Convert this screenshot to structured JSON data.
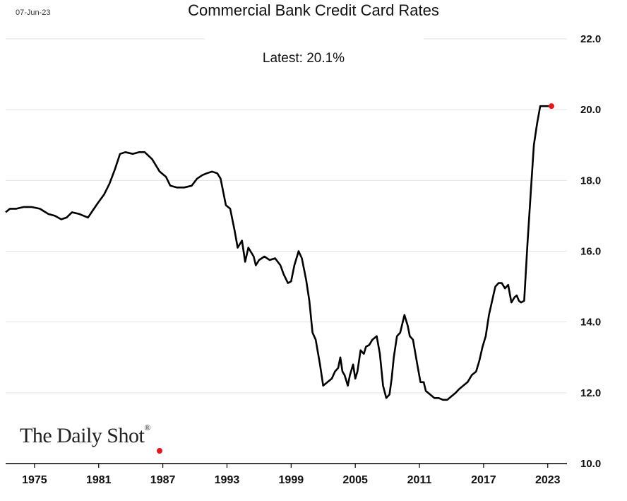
{
  "header": {
    "date": "07-Jun-23",
    "title": "Commercial Bank Credit Card Rates",
    "subtitle": "Latest:  20.1%"
  },
  "branding": {
    "logo_text": "The Daily Shot",
    "logo_mark": "®"
  },
  "colors": {
    "line": "#000000",
    "highlight": "#e2191c",
    "grid": "#e2e2e2"
  },
  "chart_data": {
    "type": "line",
    "title": "Commercial Bank Credit Card Rates",
    "subtitle": "Latest:  20.1%",
    "xlabel": "",
    "ylabel": "",
    "xlim": [
      1972.3,
      2024.8
    ],
    "ylim": [
      10.0,
      22.0
    ],
    "y_ticks": [
      "10.0",
      "12.0",
      "14.0",
      "16.0",
      "18.0",
      "20.0",
      "22.0"
    ],
    "x_ticks": [
      "1975",
      "1981",
      "1987",
      "1993",
      "1999",
      "2005",
      "2011",
      "2017",
      "2023"
    ],
    "grid": "horizontal",
    "y_axis_position": "right",
    "latest_point": {
      "x": 2023.35,
      "y": 20.1
    },
    "series": [
      {
        "x": [
          1972.3,
          1972.7,
          1973.3,
          1974.0,
          1974.7,
          1975.5,
          1976.3,
          1976.9,
          1977.5,
          1978.0,
          1978.5,
          1979.2,
          1980.0,
          1980.9,
          1981.5,
          1982.0,
          1982.5,
          1983.0,
          1983.5,
          1984.2,
          1984.8,
          1985.3,
          1986.0,
          1986.7,
          1987.3,
          1987.7,
          1988.3,
          1989.0,
          1989.7,
          1990.2,
          1990.7,
          1991.1,
          1991.6,
          1992.1,
          1992.4,
          1992.9,
          1993.3,
          1993.7,
          1994.0,
          1994.4,
          1994.7,
          1995.0,
          1995.5,
          1995.7,
          1996.0,
          1996.5,
          1997.0,
          1997.5,
          1998.0,
          1998.3,
          1998.7,
          1999.0,
          1999.3,
          1999.7,
          2000.0,
          2000.4,
          2000.7,
          2001.0,
          2001.3,
          2001.7,
          2002.0,
          2002.4,
          2002.8,
          2003.1,
          2003.4,
          2003.6,
          2003.8,
          2004.0,
          2004.3,
          2004.5,
          2004.8,
          2005.0,
          2005.2,
          2005.5,
          2005.8,
          2006.0,
          2006.3,
          2006.6,
          2007.0,
          2007.3,
          2007.6,
          2007.9,
          2008.2,
          2008.4,
          2008.6,
          2008.9,
          2009.2,
          2009.6,
          2009.9,
          2010.1,
          2010.4,
          2010.8,
          2011.1,
          2011.4,
          2011.6,
          2012.0,
          2012.4,
          2012.8,
          2013.2,
          2013.6,
          2014.0,
          2014.4,
          2014.7,
          2015.1,
          2015.5,
          2015.9,
          2016.3,
          2016.6,
          2016.9,
          2017.2,
          2017.5,
          2017.8,
          2018.1,
          2018.4,
          2018.7,
          2019.0,
          2019.3,
          2019.6,
          2019.9,
          2020.1,
          2020.3,
          2020.5,
          2020.8,
          2021.1,
          2021.4,
          2021.7,
          2022.0,
          2022.3,
          2022.5,
          2022.7,
          2022.9,
          2023.1,
          2023.35
        ],
        "y": [
          17.1,
          17.2,
          17.2,
          17.25,
          17.25,
          17.2,
          17.05,
          17.0,
          16.9,
          16.95,
          17.1,
          17.05,
          16.95,
          17.35,
          17.6,
          17.9,
          18.3,
          18.75,
          18.8,
          18.75,
          18.8,
          18.8,
          18.6,
          18.25,
          18.1,
          17.85,
          17.8,
          17.8,
          17.85,
          18.05,
          18.15,
          18.2,
          18.25,
          18.2,
          18.05,
          17.3,
          17.2,
          16.6,
          16.1,
          16.3,
          15.7,
          16.1,
          15.85,
          15.6,
          15.75,
          15.85,
          15.75,
          15.8,
          15.6,
          15.35,
          15.1,
          15.15,
          15.6,
          16.0,
          15.8,
          15.2,
          14.6,
          13.7,
          13.5,
          12.8,
          12.2,
          12.3,
          12.4,
          12.6,
          12.7,
          13.0,
          12.6,
          12.5,
          12.2,
          12.5,
          12.8,
          12.4,
          12.6,
          13.2,
          13.1,
          13.3,
          13.35,
          13.5,
          13.6,
          13.1,
          12.2,
          11.85,
          11.95,
          12.4,
          13.0,
          13.6,
          13.7,
          14.2,
          13.9,
          13.6,
          13.5,
          12.8,
          12.3,
          12.3,
          12.05,
          11.95,
          11.85,
          11.85,
          11.8,
          11.8,
          11.9,
          12.0,
          12.1,
          12.2,
          12.3,
          12.5,
          12.6,
          12.9,
          13.3,
          13.6,
          14.2,
          14.6,
          15.0,
          15.1,
          15.1,
          14.95,
          15.05,
          14.55,
          14.7,
          14.75,
          14.6,
          14.55,
          14.6,
          16.2,
          17.6,
          19.0,
          19.6,
          20.1,
          20.1,
          20.1,
          20.1,
          20.1,
          20.1
        ]
      }
    ]
  }
}
